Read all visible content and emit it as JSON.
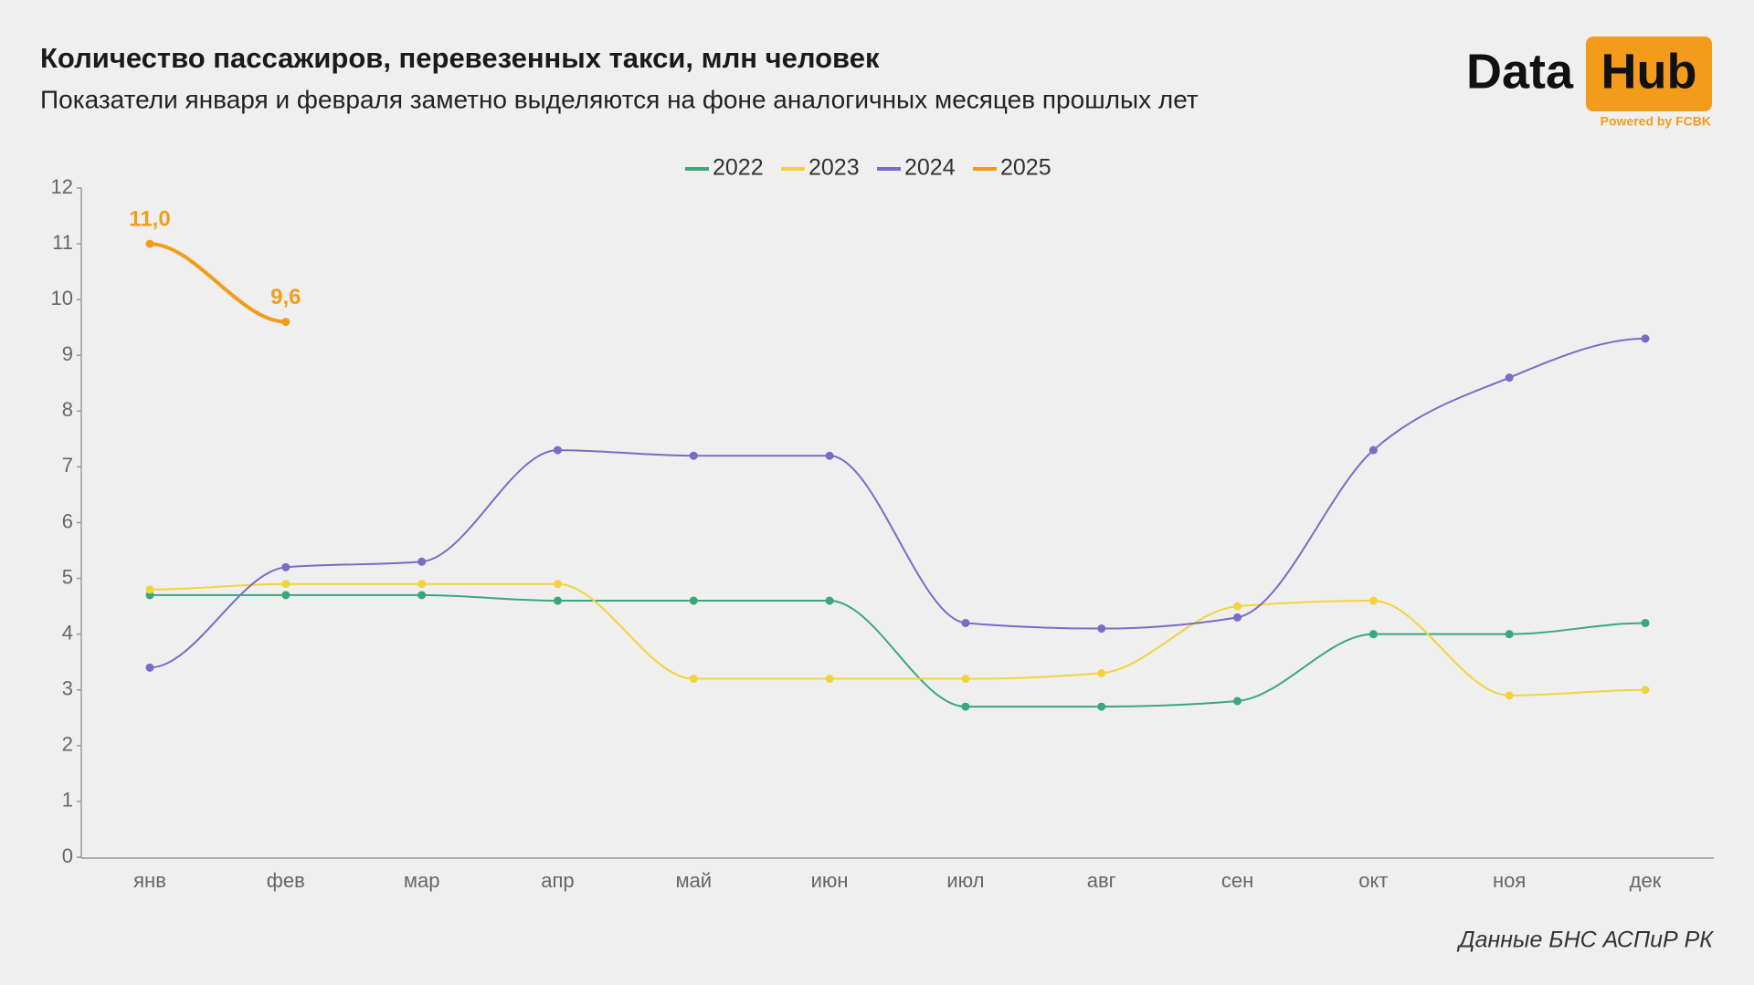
{
  "title": "Количество пассажиров, перевезенных такси, млн человек",
  "subtitle": "Показатели января и февраля заметно выделяются на фоне аналогичных месяцев прошлых лет",
  "logo": {
    "left": "Data",
    "right": "Hub",
    "tagline": "Powered by FCBK"
  },
  "source": "Данные БНС АСПиР РК",
  "chart_data": {
    "type": "line",
    "categories": [
      "янв",
      "фев",
      "мар",
      "апр",
      "май",
      "июн",
      "июл",
      "авг",
      "сен",
      "окт",
      "ноя",
      "дек"
    ],
    "series": [
      {
        "name": "2022",
        "color": "#3aa87c",
        "values": [
          4.7,
          4.7,
          4.7,
          4.6,
          4.6,
          4.6,
          2.7,
          2.7,
          2.8,
          4.0,
          4.0,
          4.2
        ]
      },
      {
        "name": "2023",
        "color": "#f2d43a",
        "values": [
          4.8,
          4.9,
          4.9,
          4.9,
          3.2,
          3.2,
          3.2,
          3.3,
          4.5,
          4.6,
          2.9,
          3.0
        ]
      },
      {
        "name": "2024",
        "color": "#7a6bc6",
        "values": [
          3.4,
          5.2,
          5.3,
          7.3,
          7.2,
          7.2,
          4.2,
          4.1,
          4.3,
          7.3,
          8.6,
          9.3
        ]
      },
      {
        "name": "2025",
        "color": "#f39c1b",
        "values": [
          11.0,
          9.6,
          null,
          null,
          null,
          null,
          null,
          null,
          null,
          null,
          null,
          null
        ],
        "value_labels": [
          "11,0",
          "9,6",
          null,
          null,
          null,
          null,
          null,
          null,
          null,
          null,
          null,
          null
        ]
      }
    ],
    "ylim": [
      0,
      12
    ],
    "yticks": [
      0,
      1,
      2,
      3,
      4,
      5,
      6,
      7,
      8,
      9,
      10,
      11,
      12
    ],
    "grid": false,
    "legend": "top"
  }
}
